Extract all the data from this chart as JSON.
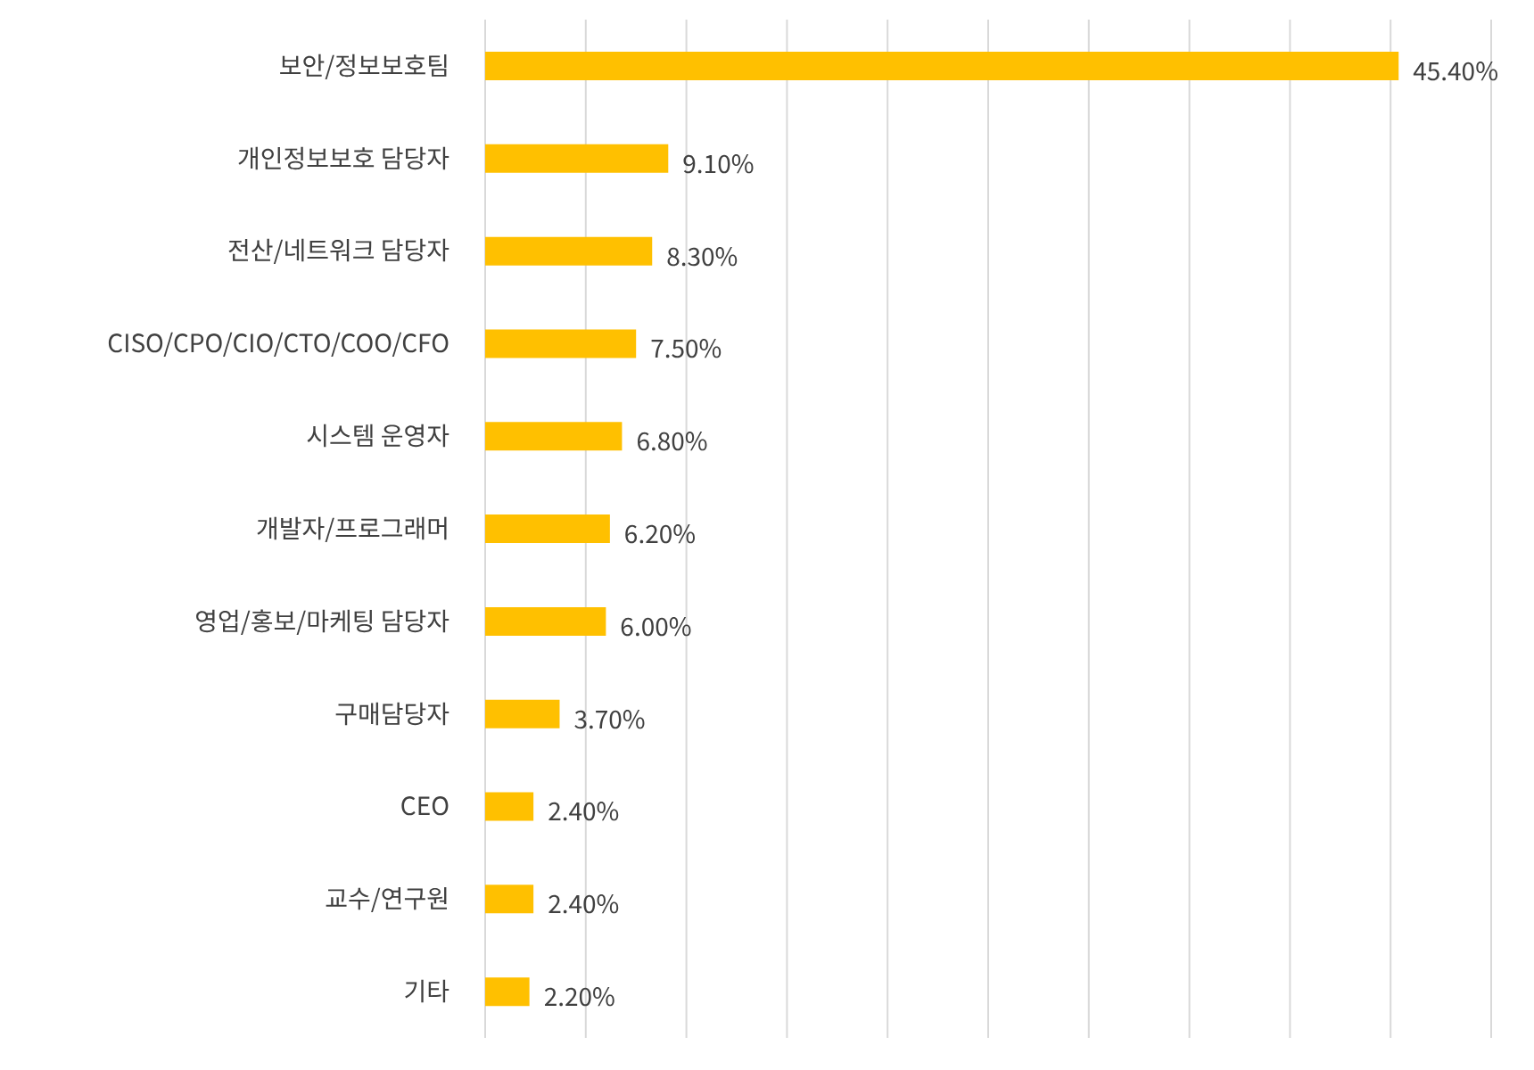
{
  "chart_data": {
    "type": "bar",
    "orientation": "horizontal",
    "categories": [
      "보안/정보보호팀",
      "개인정보보호 담당자",
      "전산/네트워크 담당자",
      "CISO/CPO/CIO/CTO/COO/CFO",
      "시스템 운영자",
      "개발자/프로그래머",
      "영업/홍보/마케팅 담당자",
      "구매담당자",
      "CEO",
      "교수/연구원",
      "기타"
    ],
    "values": [
      45.4,
      9.1,
      8.3,
      7.5,
      6.8,
      6.2,
      6.0,
      3.7,
      2.4,
      2.4,
      2.2
    ],
    "value_labels": [
      "45.40%",
      "9.10%",
      "8.30%",
      "7.50%",
      "6.80%",
      "6.20%",
      "6.00%",
      "3.70%",
      "2.40%",
      "2.40%",
      "2.20%"
    ],
    "color": "#ffc000",
    "xlim": [
      0,
      50
    ],
    "xticks": [
      {
        "value": 0,
        "label": null
      },
      {
        "value": 5,
        "label": null
      },
      {
        "value": 10,
        "label": null
      },
      {
        "value": 15,
        "label": null
      },
      {
        "value": 20,
        "label": null
      },
      {
        "value": 25,
        "label": null
      },
      {
        "value": 30,
        "label": null
      },
      {
        "value": 35,
        "label": null
      },
      {
        "value": 40,
        "label": null
      },
      {
        "value": 45,
        "label": null
      },
      {
        "value": 50,
        "label": null
      }
    ],
    "grid": "x",
    "tick_labels": "y",
    "legend": false
  }
}
